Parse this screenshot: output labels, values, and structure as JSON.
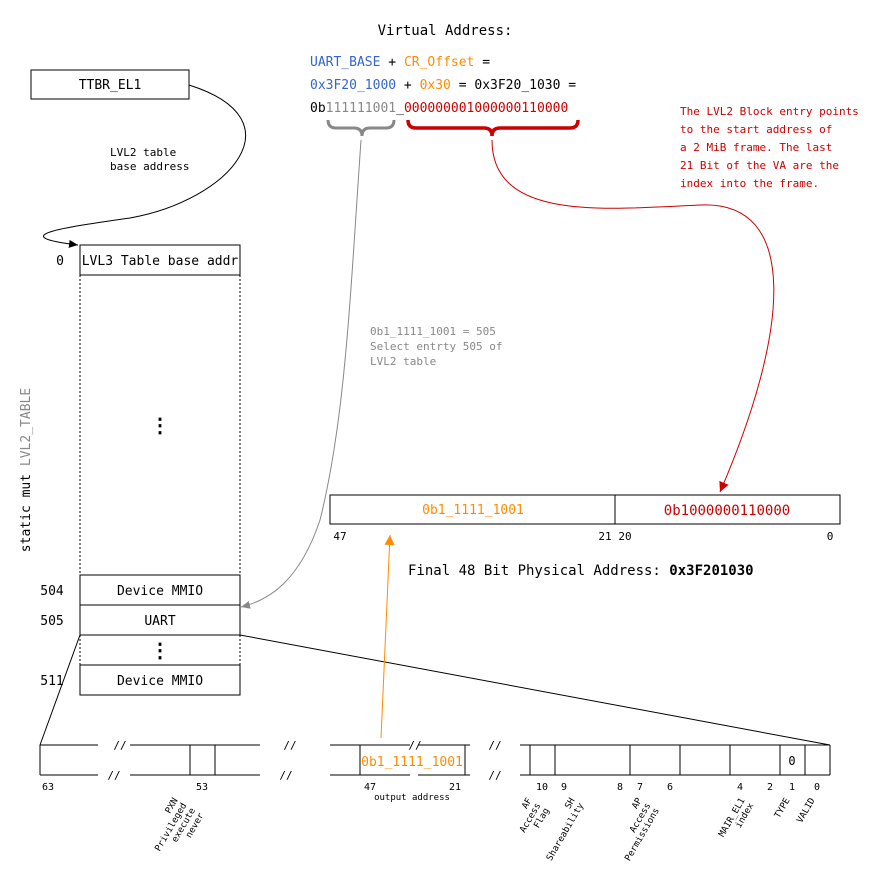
{
  "colors": {
    "blue": "#3366cc",
    "orange": "#ff8c00",
    "red": "#cc0000",
    "gray": "#888888",
    "black": "#000000"
  },
  "va": {
    "title": "Virtual Address:",
    "line1": {
      "base": "UART_BASE",
      "plus": "+",
      "offset": "CR_Offset",
      "eq": "="
    },
    "line2": {
      "base": "0x3F20_1000",
      "plus": "+",
      "offset": "0x30",
      "eq": "= 0x3F20_1030 ="
    },
    "line3": {
      "prefix": "0b",
      "index_bits": "111111001",
      "sep": "_",
      "offset_bits": "000000001000000110000"
    }
  },
  "ttbr": {
    "label": "TTBR_EL1"
  },
  "lvl2_note": {
    "line1": "LVL2 table",
    "line2": "base address"
  },
  "table": {
    "side_label_prefix": "static mut ",
    "side_label_name": "LVL2_TABLE",
    "row0_index": "0",
    "row0_label": "LVL3 Table base addr",
    "dots": "⋮",
    "row504_index": "504",
    "row504_label": "Device MMIO",
    "row505_index": "505",
    "row505_label": "UART",
    "row511_index": "511",
    "row511_label": "Device MMIO"
  },
  "gray_note": {
    "line1": "0b1_1111_1001 = 505",
    "line2": "Select entrty 505 of",
    "line3": "LVL2 table"
  },
  "red_note": {
    "line1": "The LVL2 Block entry points",
    "line2": "to the start address of",
    "line3": "a 2 MiB frame. The last",
    "line4": "21 Bit of the VA are the",
    "line5": "index into the frame."
  },
  "pa": {
    "left_value": "0b1_1111_1001",
    "right_value": "0b1000000110000",
    "bit47": "47",
    "bit21": "21",
    "bit20": "20",
    "bit0": "0",
    "caption_prefix": "Final 48 Bit Physical Address: ",
    "caption_value": "0x3F201030"
  },
  "descriptor": {
    "break_mark": "//",
    "output_value": "0b1_1111_1001",
    "type_value": "0",
    "bits": {
      "b63": "63",
      "b53": "53",
      "b47": "47",
      "b21": "21",
      "b10": "10",
      "b9": "9",
      "b8": "8",
      "b7": "7",
      "b6": "6",
      "b4": "4",
      "b2": "2",
      "b1": "1",
      "b0": "0"
    },
    "output_label": "output address",
    "fields": {
      "pxn": [
        "PXN",
        "Privileged",
        "execute",
        "never"
      ],
      "af": [
        "AF",
        "Access",
        "Flag"
      ],
      "sh": [
        "SH",
        "Shareability"
      ],
      "ap": [
        "AP",
        "Access",
        "Permissions"
      ],
      "attr": [
        "MAIR_EL1",
        "index"
      ],
      "type": [
        "TYPE"
      ],
      "valid": [
        "VALID"
      ]
    }
  }
}
